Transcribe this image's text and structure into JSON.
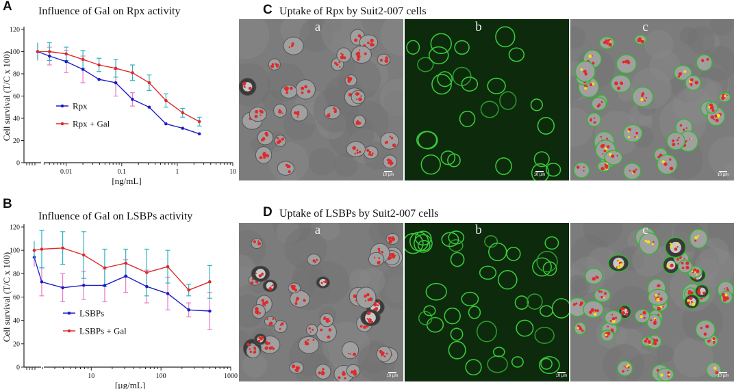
{
  "panels": {
    "A": {
      "letter": "A",
      "title": "Influence of Gal on Rpx activity"
    },
    "B": {
      "letter": "B",
      "title": "Influence of Gal on LSBPs activity"
    },
    "C": {
      "letter": "C",
      "title": "Uptake of Rpx by Suit2-007 cells",
      "sublabels": [
        "a",
        "b",
        "c"
      ],
      "scalebar": "10 µm"
    },
    "D": {
      "letter": "D",
      "title": "Uptake of LSBPs by Suit2-007 cells",
      "sublabels": [
        "a",
        "b",
        "c"
      ],
      "scalebar": "10 µm"
    }
  },
  "colors": {
    "blue": "#1c1cc8",
    "red": "#e02828",
    "cyan": "#28b4c0",
    "pink": "#e878c8"
  },
  "chart_data": [
    {
      "type": "line",
      "title": "Influence of Gal on Rpx activity",
      "xlabel": "[ng/mL]",
      "ylabel": "Cell survival (T/C x 100)",
      "xscale": "log",
      "xlim": [
        0.002,
        10
      ],
      "ylim": [
        0,
        120
      ],
      "yticks": [
        0,
        20,
        40,
        60,
        80,
        100,
        120
      ],
      "xticks": [
        "0.01",
        "0.1",
        "1",
        "10"
      ],
      "legend_position": "center-left",
      "control_point": {
        "rpx": 100,
        "rpx_gal": 100
      },
      "series": [
        {
          "name": "Rpx",
          "color": "#1c1cc8",
          "errcolor": "#e878c8",
          "x": [
            0.005,
            0.01,
            0.02,
            0.039,
            0.078,
            0.156,
            0.3125,
            0.625,
            1.25,
            2.5
          ],
          "y": [
            96,
            91,
            84,
            75,
            72,
            57,
            50,
            35,
            31,
            26
          ],
          "err": [
            8,
            10,
            12,
            0,
            12,
            6,
            0,
            0,
            0,
            0
          ]
        },
        {
          "name": "Rpx + Gal",
          "color": "#e02828",
          "errcolor": "#28b4c0",
          "x": [
            0.005,
            0.01,
            0.02,
            0.039,
            0.078,
            0.156,
            0.3125,
            0.625,
            1.25,
            2.5
          ],
          "y": [
            100,
            98,
            93,
            88,
            85,
            81,
            72,
            56,
            45,
            37
          ],
          "err": [
            8,
            6,
            8,
            6,
            8,
            7,
            7,
            6,
            4,
            4
          ]
        }
      ]
    },
    {
      "type": "line",
      "title": "Influence of Gal on LSBPs activity",
      "xlabel": "[µg/mL]",
      "ylabel": "Cell survival (T/C x 100)",
      "xscale": "log",
      "xlim": [
        1.3,
        1000
      ],
      "ylim": [
        0,
        120
      ],
      "yticks": [
        0,
        20,
        40,
        60,
        80,
        100,
        120
      ],
      "xticks": [
        "10",
        "100",
        "1000"
      ],
      "legend_position": "bottom-left",
      "control_point": {
        "lsbps": 94,
        "lsbps_gal": 100
      },
      "series": [
        {
          "name": "LSBPs",
          "color": "#1c1cc8",
          "errcolor": "#e878c8",
          "x": [
            1.95,
            3.9,
            7.8,
            15.6,
            31.25,
            62.5,
            125,
            250,
            500
          ],
          "y": [
            73,
            68,
            70,
            70,
            78,
            69,
            63,
            49,
            48
          ],
          "err": [
            12,
            12,
            12,
            14,
            14,
            14,
            14,
            6,
            16
          ]
        },
        {
          "name": "LSBPs + Gal",
          "color": "#e02828",
          "errcolor": "#28b4c0",
          "x": [
            1.95,
            3.9,
            7.8,
            15.6,
            31.25,
            62.5,
            125,
            250,
            500
          ],
          "y": [
            101,
            102,
            96,
            85,
            89,
            81,
            86,
            66,
            73
          ],
          "err": [
            16,
            14,
            20,
            16,
            12,
            20,
            14,
            5,
            14
          ]
        }
      ]
    }
  ]
}
